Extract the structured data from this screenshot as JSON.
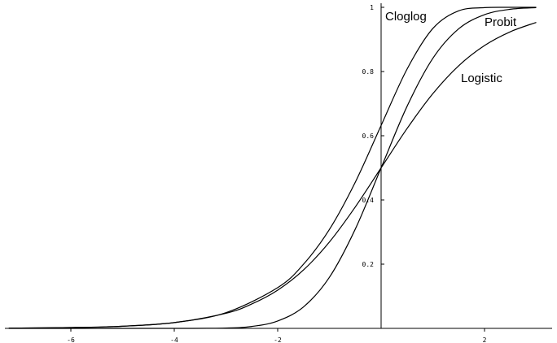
{
  "chart_data": {
    "type": "line",
    "title": "",
    "xlabel": "",
    "ylabel": "",
    "xlim": [
      -7.2,
      3.0
    ],
    "ylim": [
      0,
      1.0
    ],
    "grid": false,
    "legend": "none",
    "x_ticks": [
      {
        "value": -6,
        "label": "-6"
      },
      {
        "value": -4,
        "label": "-4"
      },
      {
        "value": -2,
        "label": "-2"
      },
      {
        "value": 2,
        "label": "2"
      }
    ],
    "y_ticks": [
      {
        "value": 0.2,
        "label": "0.2"
      },
      {
        "value": 0.4,
        "label": "0.4"
      },
      {
        "value": 0.6,
        "label": "0.6"
      },
      {
        "value": 0.8,
        "label": "0.8"
      },
      {
        "value": 1.0,
        "label": "1"
      }
    ],
    "series": [
      {
        "name": "Cloglog",
        "x": [
          -7.2,
          -6,
          -5,
          -4,
          -3,
          -2,
          -1.5,
          -1,
          -0.5,
          0,
          0.5,
          1,
          1.5,
          2,
          2.5,
          3
        ],
        "values": [
          0.0007,
          0.0025,
          0.0067,
          0.018,
          0.049,
          0.127,
          0.2,
          0.308,
          0.455,
          0.632,
          0.807,
          0.934,
          0.989,
          0.999,
          1.0,
          1.0
        ]
      },
      {
        "name": "Probit",
        "x": [
          -7.2,
          -6,
          -5,
          -4,
          -3,
          -2.5,
          -2,
          -1.5,
          -1,
          -0.5,
          0,
          0.5,
          1,
          1.5,
          2,
          2.5,
          3
        ],
        "values": [
          0.0,
          0.0,
          0.0,
          0.0,
          0.001,
          0.006,
          0.023,
          0.067,
          0.159,
          0.309,
          0.5,
          0.691,
          0.841,
          0.933,
          0.977,
          0.994,
          0.999
        ]
      },
      {
        "name": "Logistic",
        "x": [
          -7.2,
          -6,
          -5,
          -4,
          -3,
          -2.5,
          -2,
          -1.5,
          -1,
          -0.5,
          0,
          0.5,
          1,
          1.5,
          2,
          2.5,
          3
        ],
        "values": [
          0.0007,
          0.0025,
          0.0067,
          0.018,
          0.047,
          0.076,
          0.119,
          0.182,
          0.269,
          0.378,
          0.5,
          0.622,
          0.731,
          0.818,
          0.881,
          0.924,
          0.953
        ]
      }
    ],
    "series_labels": [
      {
        "series": "Cloglog",
        "text": "Cloglog"
      },
      {
        "series": "Probit",
        "text": "Probit"
      },
      {
        "series": "Logistic",
        "text": "Logistic"
      }
    ]
  }
}
